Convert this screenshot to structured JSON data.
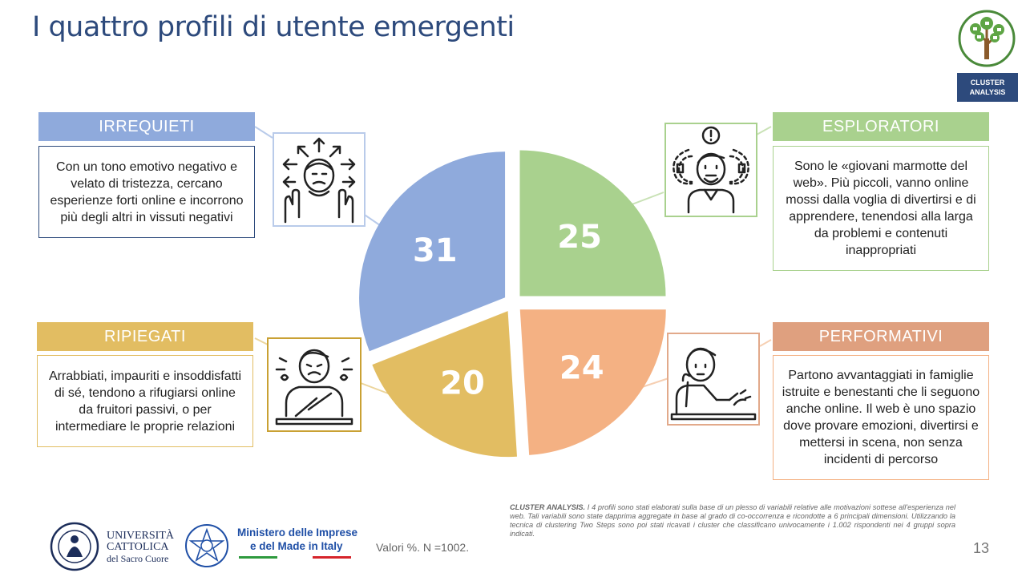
{
  "page": {
    "title": "I quattro profili di utente emergenti",
    "page_number": "13",
    "badge": [
      "CLUSTER",
      "ANALYSIS"
    ]
  },
  "chart_data": {
    "type": "pie",
    "categories": [
      "ESPLORATORI",
      "PERFORMATIVI",
      "RIPIEGATI",
      "IRREQUIETI"
    ],
    "values": [
      25,
      24,
      20,
      31
    ],
    "labels": [
      "25",
      "24",
      "20",
      "31"
    ],
    "colors": [
      "#a9d18e",
      "#f4b183",
      "#e2bd62",
      "#8faadc"
    ],
    "unit": "%"
  },
  "profiles": {
    "irrequieti": {
      "name": "IRREQUIETI",
      "color": "#8faadc",
      "description": "Con un tono emotivo negativo e velato di tristezza, cercano esperienze forti online e incorrono più degli altri in vissuti negativi",
      "icon": "anxious-person-arrows-icon"
    },
    "esploratori": {
      "name": "ESPLORATORI",
      "color": "#a9d18e",
      "description": "Sono le «giovani marmotte del web». Più piccoli, vanno online mossi dalla voglia di divertirsi e di apprendere, tenendosi alla larga da problemi e contenuti inappropriati",
      "icon": "curious-person-exclamation-icon"
    },
    "ripiegati": {
      "name": "RIPIEGATI",
      "color": "#e2bd62",
      "description": "Arrabbiati, impauriti e insoddisfatti di sé, tendono a rifugiarsi online da fruitori passivi, o per intermediare le proprie relazioni",
      "icon": "worried-person-desk-icon"
    },
    "performativi": {
      "name": "PERFORMATIVI",
      "color": "#f4b183",
      "description": "Partono avvantaggiati in famiglie istruite e benestanti che li seguono anche online. Il web è uno spazio dove provare emozioni, divertirsi e mettersi in scena, non senza incidenti di percorso",
      "icon": "thinking-person-desk-icon"
    }
  },
  "footer": {
    "valori": "Valori %. N =1002.",
    "note_bold": "CLUSTER ANALYSIS.",
    "note_text": " I 4 profili sono stati elaborati sulla base di un plesso di variabili relative alle motivazioni sottese all'esperienza nel web. Tali variabili sono state dapprima aggregate in base al grado di co-occorrenza e ricondotte a 6 principali dimensioni. Utilizzando la tecnica di clustering Two Steps sono poi stati ricavati i cluster che classificano univocamente i 1.002 rispondenti nei 4 gruppi sopra indicati.",
    "university": [
      "UNIVERSITÀ",
      "CATTOLICA",
      "del Sacro Cuore"
    ],
    "ministry": [
      "Ministero delle Imprese",
      "e del Made in Italy"
    ]
  }
}
